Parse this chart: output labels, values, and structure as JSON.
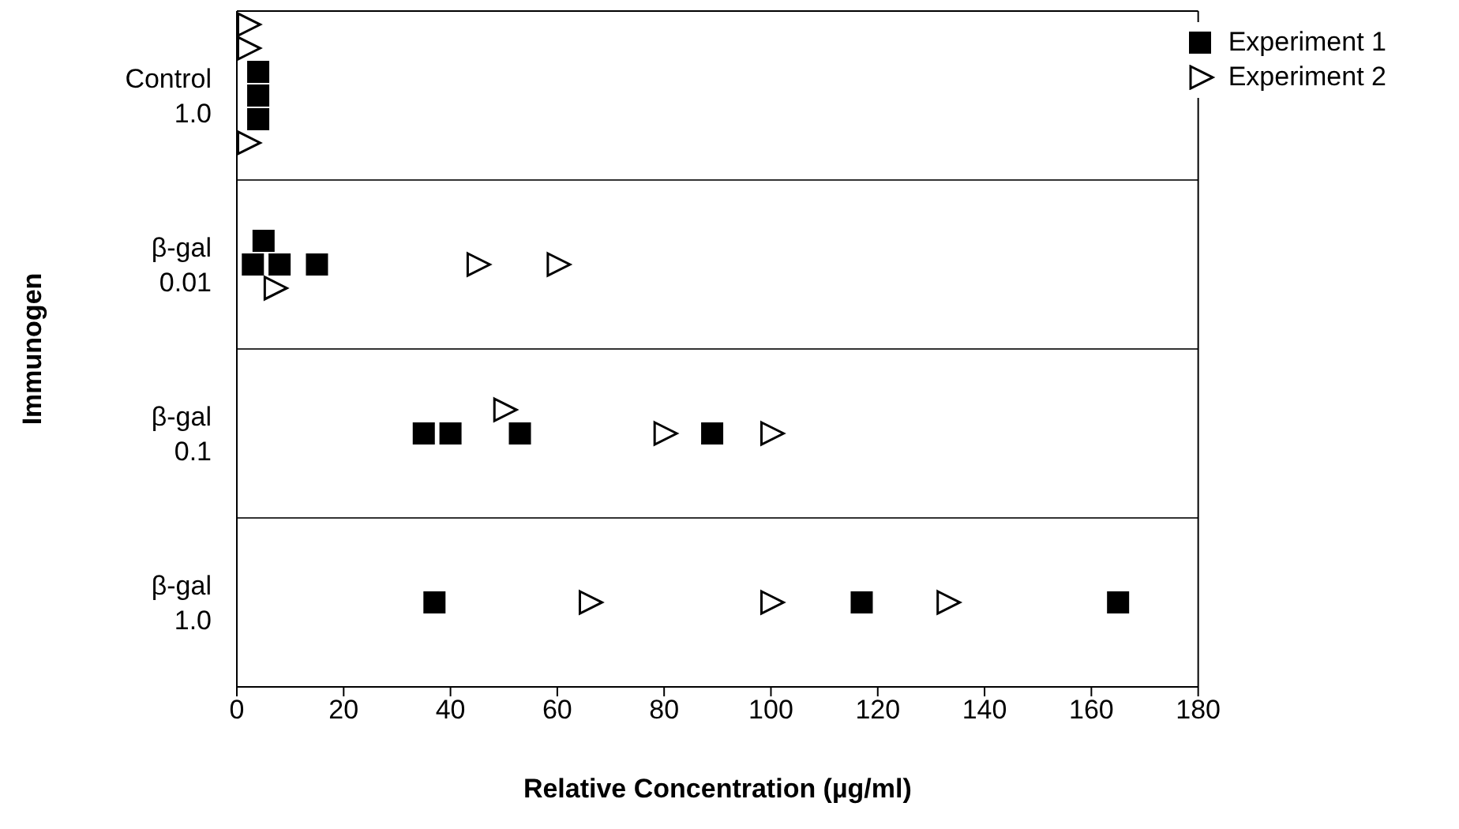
{
  "chart_data": {
    "type": "scatter",
    "orientation": "horizontal",
    "xlabel": "Relative Concentration (µg/ml)",
    "ylabel": "Immunogen",
    "categories": [
      "Control\n1.0",
      "β-gal\n0.01",
      "β-gal\n0.1",
      "β-gal\n1.0"
    ],
    "series": [
      {
        "name": "Experiment 1",
        "color": "#000000",
        "marker": "square",
        "values": [
          4,
          3,
          35,
          37
        ]
      },
      {
        "color": "#000000",
        "marker": "square",
        "values": [
          4,
          5,
          40,
          117
        ]
      },
      {
        "color": "#000000",
        "marker": "square",
        "values": [
          4,
          8,
          53,
          165
        ]
      },
      {
        "color": "#000000",
        "marker": "square",
        "values": [
          null,
          15,
          89,
          null
        ]
      },
      {
        "name": "Experiment 2",
        "color": "#000000",
        "marker": "triangle",
        "values": [
          2,
          7,
          50,
          66
        ]
      },
      {
        "color": "#000000",
        "marker": "triangle",
        "values": [
          2,
          45,
          80,
          100
        ]
      },
      {
        "color": "#000000",
        "marker": "triangle",
        "values": [
          2,
          60,
          100,
          133
        ]
      }
    ],
    "xlim": [
      0,
      180
    ],
    "xticks": [
      0,
      20,
      40,
      60,
      80,
      100,
      120,
      140,
      160,
      180
    ],
    "legend": "top right"
  }
}
